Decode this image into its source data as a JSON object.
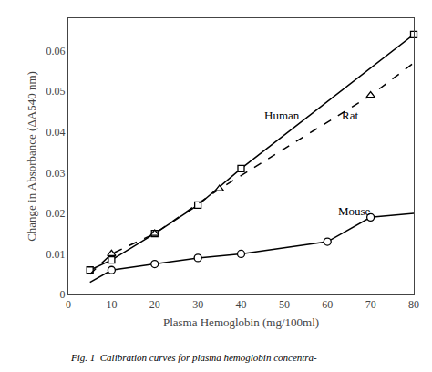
{
  "chart_data": {
    "type": "line",
    "xlabel": "Plasma Hemoglobin (mg/100ml)",
    "ylabel": "Change in Absorbance (ΔA540 nm)",
    "caption": "Fig. 1  Calibration curves for plasma hemoglobin concentra-",
    "xlim": [
      0,
      80
    ],
    "ylim": [
      0,
      0.068
    ],
    "xticks": [
      0,
      10,
      20,
      30,
      40,
      50,
      60,
      70,
      80
    ],
    "yticks": [
      0,
      0.01,
      0.02,
      0.03,
      0.04,
      0.05,
      0.06
    ],
    "grid": false,
    "series": [
      {
        "type": "line",
        "line_style": "solid",
        "color": "#000000",
        "x": [
          5,
          10,
          20,
          30,
          40,
          80
        ],
        "values": [
          0.006,
          0.0085,
          0.015,
          0.022,
          0.031,
          0.064
        ]
      },
      {
        "type": "scatter",
        "marker": "square",
        "color": "#000000",
        "x": [
          5,
          10,
          20,
          30,
          40,
          80
        ],
        "values": [
          0.006,
          0.0085,
          0.015,
          0.022,
          0.031,
          0.064
        ]
      },
      {
        "type": "line",
        "line_style": "dashed",
        "color": "#000000",
        "x": [
          5,
          10,
          20,
          35,
          70,
          80
        ],
        "values": [
          0.005,
          0.01,
          0.015,
          0.026,
          0.049,
          0.057
        ]
      },
      {
        "type": "scatter",
        "marker": "triangle-up",
        "color": "#000000",
        "x": [
          10,
          20,
          35,
          70
        ],
        "values": [
          0.01,
          0.015,
          0.026,
          0.049
        ]
      },
      {
        "type": "line",
        "line_style": "solid",
        "color": "#000000",
        "x": [
          5,
          10,
          20,
          30,
          40,
          60,
          70,
          80
        ],
        "values": [
          0.003,
          0.006,
          0.0075,
          0.009,
          0.01,
          0.013,
          0.019,
          0.02
        ]
      },
      {
        "type": "scatter",
        "marker": "circle",
        "color": "#000000",
        "x": [
          10,
          20,
          30,
          40,
          60,
          70
        ],
        "values": [
          0.006,
          0.0075,
          0.009,
          0.01,
          0.013,
          0.019
        ]
      }
    ],
    "annotations": [
      {
        "text": "Human",
        "x": 45,
        "y": 0.044
      },
      {
        "text": "Rat",
        "x": 63,
        "y": 0.044
      },
      {
        "text": "Mouse",
        "x": 62,
        "y": 0.0205
      }
    ]
  }
}
